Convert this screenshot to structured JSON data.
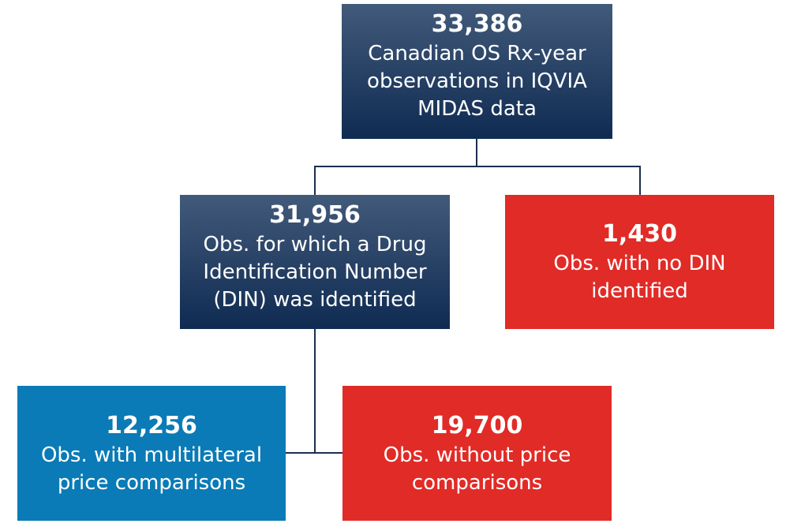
{
  "nodes": [
    {
      "count": "33,386",
      "label": [
        "Canadian OS Rx-year",
        "observations in IQVIA",
        "MIDAS data"
      ]
    },
    {
      "count": "31,956",
      "label": [
        "Obs. for which a Drug",
        "Identification Number",
        "(DIN) was identified"
      ]
    },
    {
      "count": "1,430",
      "label": [
        "Obs. with no DIN",
        "identified"
      ]
    },
    {
      "count": "12,256",
      "label": [
        "Obs. with multilateral",
        "price comparisons"
      ]
    },
    {
      "count": "19,700",
      "label": [
        "Obs. without price",
        "comparisons"
      ]
    }
  ]
}
